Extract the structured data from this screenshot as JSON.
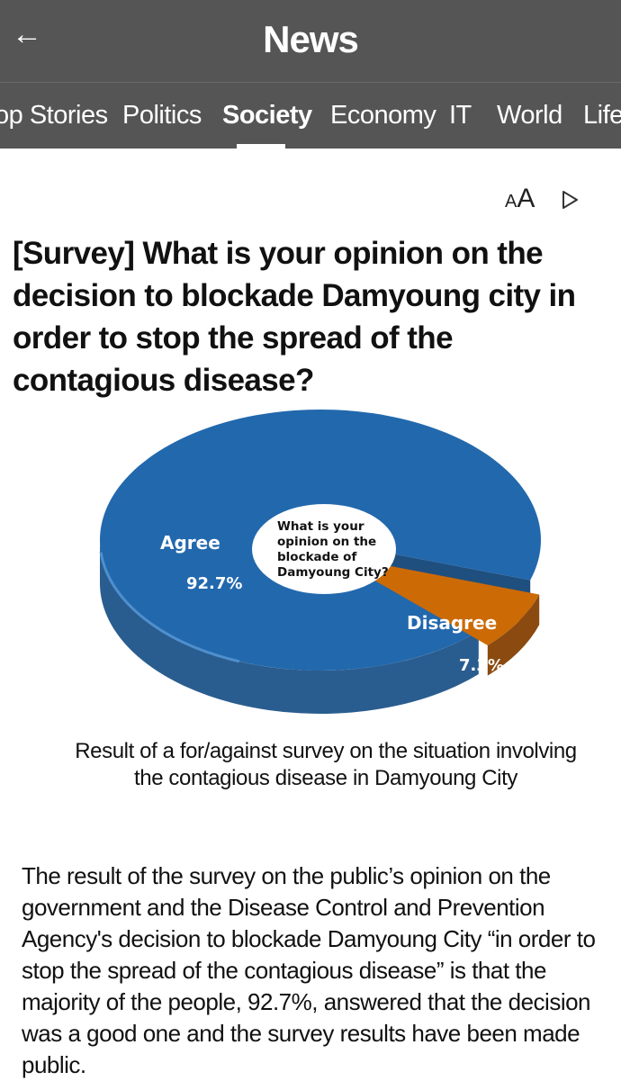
{
  "header": {
    "title": "News",
    "back_label": "←"
  },
  "tabs": [
    "op Stories",
    "Politics",
    "Society",
    "Economy",
    "IT",
    "World",
    "Life"
  ],
  "active_tab": "Society",
  "toolbar": {
    "font_small": "A",
    "font_large": "A",
    "play_icon": "play-icon"
  },
  "article": {
    "headline": "[Survey] What is your opinion on the decision to blockade Damyoung city in order to stop the spread of the contagious disease?",
    "caption_line1": "Result of a for/against survey on the situation involving",
    "caption_line2": "the contagious disease in Damyoung City",
    "body": "The result of the survey on the public’s opinion on the government and the Disease Control and Prevention Agency's decision to blockade Damyoung City “in order to stop the spread of the contagious disease” is that the majority of the people, 92.7%, answered that the decision was a good one and the survey results have been made public."
  },
  "chart_data": {
    "type": "pie",
    "title": "What is your opinion on the blockade of Damyoung City?",
    "title_lines": [
      "What is your",
      "opinion on the",
      "blockade of",
      "Damyoung City?"
    ],
    "categories": [
      "Agree",
      "Disagree"
    ],
    "values": [
      92.7,
      7.3
    ],
    "value_labels": [
      "92.7%",
      "7.3%"
    ],
    "colors": {
      "agree": "#2268ad",
      "agree_side": "#2a5d8f",
      "disagree": "#cc6a06",
      "disagree_side": "#8a4a10"
    }
  },
  "colors": {
    "header_bg": "#555555",
    "text": "#111111"
  }
}
